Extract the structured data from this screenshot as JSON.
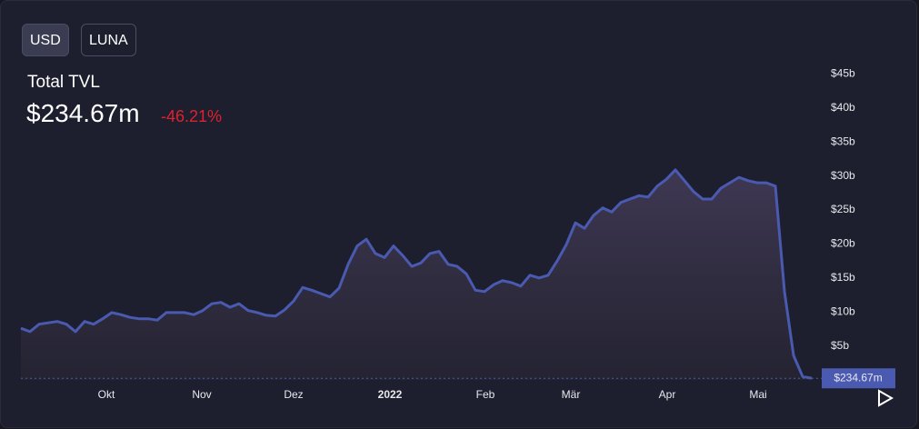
{
  "buttons": [
    "USD",
    "LUNA"
  ],
  "chart_data": {
    "type": "area",
    "title": "Total TVL",
    "current_value": "$234.67m",
    "change": "-46.21%",
    "color": "#4a5ab0",
    "values": [
      7.6,
      7.1,
      8.2,
      8.4,
      8.6,
      8.2,
      7.1,
      8.6,
      8.2,
      9.0,
      9.9,
      9.6,
      9.2,
      9.0,
      9.0,
      8.8,
      9.9,
      9.9,
      9.9,
      9.6,
      10.2,
      11.2,
      11.4,
      10.7,
      11.2,
      10.2,
      9.9,
      9.5,
      9.4,
      10.3,
      11.6,
      13.6,
      13.2,
      12.7,
      12.2,
      13.5,
      17.0,
      19.7,
      20.7,
      18.6,
      18.0,
      19.7,
      18.3,
      16.7,
      17.2,
      18.6,
      18.9,
      17.0,
      16.7,
      15.6,
      13.2,
      13.0,
      14.0,
      14.6,
      14.3,
      13.8,
      15.4,
      15.0,
      15.4,
      17.5,
      19.9,
      23.1,
      22.3,
      24.2,
      25.3,
      24.7,
      26.1,
      26.6,
      27.1,
      26.9,
      28.5,
      29.5,
      30.9,
      29.3,
      27.7,
      26.6,
      26.6,
      28.2,
      29.0,
      29.8,
      29.3,
      29.0,
      29.0,
      28.5,
      13.0,
      3.6,
      0.5,
      0.23467
    ],
    "xlim": [
      0,
      87
    ],
    "xticks": [
      {
        "value": 9.4,
        "label": "Okt"
      },
      {
        "value": 19.9,
        "label": "Nov"
      },
      {
        "value": 30.0,
        "label": "Dez"
      },
      {
        "value": 40.6,
        "label": "2022"
      },
      {
        "value": 51.1,
        "label": "Feb"
      },
      {
        "value": 60.5,
        "label": "Mär"
      },
      {
        "value": 71.1,
        "label": "Apr"
      },
      {
        "value": 81.1,
        "label": "Mai"
      }
    ],
    "ylim": [
      0,
      50.4
    ],
    "yticks": [
      {
        "value": 5,
        "label": "$5b"
      },
      {
        "value": 10,
        "label": "$10b"
      },
      {
        "value": 15,
        "label": "$15b"
      },
      {
        "value": 20,
        "label": "$20b"
      },
      {
        "value": 25,
        "label": "$25b"
      },
      {
        "value": 30,
        "label": "$30b"
      },
      {
        "value": 35,
        "label": "$35b"
      },
      {
        "value": 40,
        "label": "$40b"
      },
      {
        "value": 45,
        "label": "$45b"
      }
    ],
    "grid": false
  }
}
